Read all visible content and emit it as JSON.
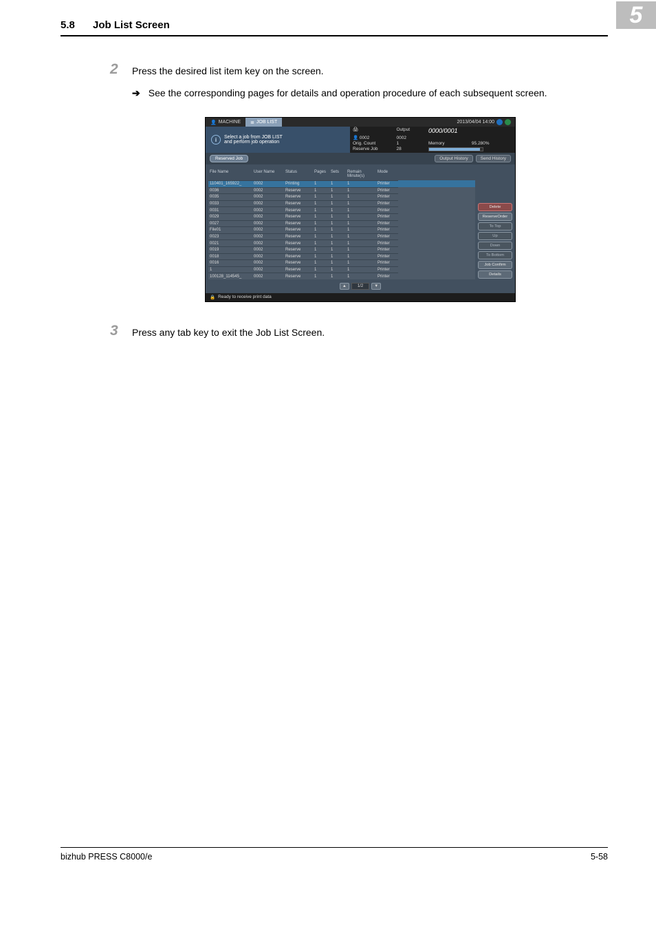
{
  "section": {
    "number": "5.8",
    "title": "Job List Screen"
  },
  "chapter_box": "5",
  "steps": {
    "two": {
      "num": "2",
      "text": "Press the desired list item key on the screen."
    },
    "two_sub": {
      "arrow": "➔",
      "text": "See the corresponding pages for details and operation procedure of each subsequent screen."
    },
    "three": {
      "num": "3",
      "text": "Press any tab key to exit the Job List Screen."
    }
  },
  "shot": {
    "tabs": {
      "machine": "MACHINE",
      "joblist": "JOB LIST"
    },
    "clock": "2013/04/04  14:00",
    "info_text": "Select a job from JOB LIST\nand perform job operation",
    "status": {
      "output_label": "Output",
      "output_val": "0000/0001",
      "user_val": "0002",
      "copy_val": "0002",
      "orig_label": "Orig. Count",
      "orig_val": "1",
      "memory_label": "Memory",
      "memory_pct": "95.280%",
      "resv_label": "Reserve Job",
      "resv_val": "28"
    },
    "reserved_tab": "Reserved Job",
    "tabbar_right": {
      "a": "Output History",
      "b": "Send  History"
    },
    "columns": [
      "File Name",
      "User Name",
      "Status",
      "Pages",
      "Sets",
      "Remain Minute(s)",
      "Mode"
    ],
    "rows": [
      {
        "f": "110401_165922_",
        "u": "0002",
        "s": "Printing",
        "p": "1",
        "st": "1",
        "r": "1",
        "m": "Printer",
        "sel": true
      },
      {
        "f": "0036",
        "u": "0002",
        "s": "Reserve",
        "p": "1",
        "st": "1",
        "r": "1",
        "m": "Printer"
      },
      {
        "f": "0035",
        "u": "0002",
        "s": "Reserve",
        "p": "1",
        "st": "1",
        "r": "1",
        "m": "Printer"
      },
      {
        "f": "0033",
        "u": "0002",
        "s": "Reserve",
        "p": "1",
        "st": "1",
        "r": "1",
        "m": "Printer"
      },
      {
        "f": "0031",
        "u": "0002",
        "s": "Reserve",
        "p": "1",
        "st": "1",
        "r": "1",
        "m": "Printer"
      },
      {
        "f": "0029",
        "u": "0002",
        "s": "Reserve",
        "p": "1",
        "st": "1",
        "r": "1",
        "m": "Printer"
      },
      {
        "f": "0027",
        "u": "0002",
        "s": "Reserve",
        "p": "1",
        "st": "1",
        "r": "1",
        "m": "Printer"
      },
      {
        "f": "File01",
        "u": "0002",
        "s": "Reserve",
        "p": "1",
        "st": "1",
        "r": "1",
        "m": "Printer"
      },
      {
        "f": "0023",
        "u": "0002",
        "s": "Reserve",
        "p": "1",
        "st": "1",
        "r": "1",
        "m": "Printer"
      },
      {
        "f": "0021",
        "u": "0002",
        "s": "Reserve",
        "p": "1",
        "st": "1",
        "r": "1",
        "m": "Printer"
      },
      {
        "f": "0019",
        "u": "0002",
        "s": "Reserve",
        "p": "1",
        "st": "1",
        "r": "1",
        "m": "Printer"
      },
      {
        "f": "0018",
        "u": "0002",
        "s": "Reserve",
        "p": "1",
        "st": "1",
        "r": "1",
        "m": "Printer"
      },
      {
        "f": "0016",
        "u": "0002",
        "s": "Reserve",
        "p": "1",
        "st": "1",
        "r": "1",
        "m": "Printer"
      },
      {
        "f": "1",
        "u": "0002",
        "s": "Reserve",
        "p": "1",
        "st": "1",
        "r": "1",
        "m": "Printer"
      },
      {
        "f": "100128_114545_",
        "u": "0002",
        "s": "Reserve",
        "p": "1",
        "st": "1",
        "r": "1",
        "m": "Printer"
      }
    ],
    "sidebuttons": {
      "delete": "Delete",
      "reserve_order": "ReserveOrder",
      "to_top": "To Top",
      "up": "Up",
      "down": "Down",
      "to_bottom": "To Bottom",
      "job_confirm": "Job Confirm",
      "details": "Details"
    },
    "pager": {
      "up": "▲",
      "down": "▼",
      "pos": "1/2"
    },
    "statusbar": "Ready to receive print data"
  },
  "footer": {
    "left": "bizhub PRESS C8000/e",
    "right": "5-58"
  }
}
